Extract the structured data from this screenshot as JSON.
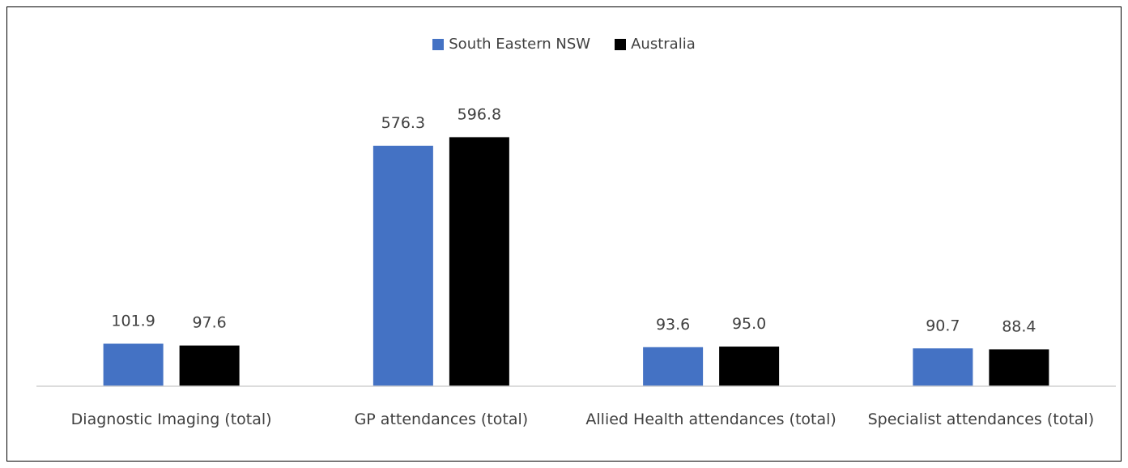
{
  "chart_data": {
    "type": "bar",
    "categories": [
      "Diagnostic Imaging (total)",
      "GP attendances (total)",
      "Allied Health attendances (total)",
      "Specialist attendances (total)"
    ],
    "series": [
      {
        "name": "South Eastern NSW",
        "color": "#4472c4",
        "values": [
          101.9,
          576.3,
          93.6,
          90.7
        ],
        "value_labels": [
          "101.9",
          "576.3",
          "93.6",
          "90.7"
        ]
      },
      {
        "name": "Australia",
        "color": "#000000",
        "values": [
          97.6,
          596.8,
          95.0,
          88.4
        ],
        "value_labels": [
          "97.6",
          "596.8",
          "95.0",
          "88.4"
        ]
      }
    ],
    "ylim": [
      0,
      650
    ],
    "legend": "top"
  }
}
